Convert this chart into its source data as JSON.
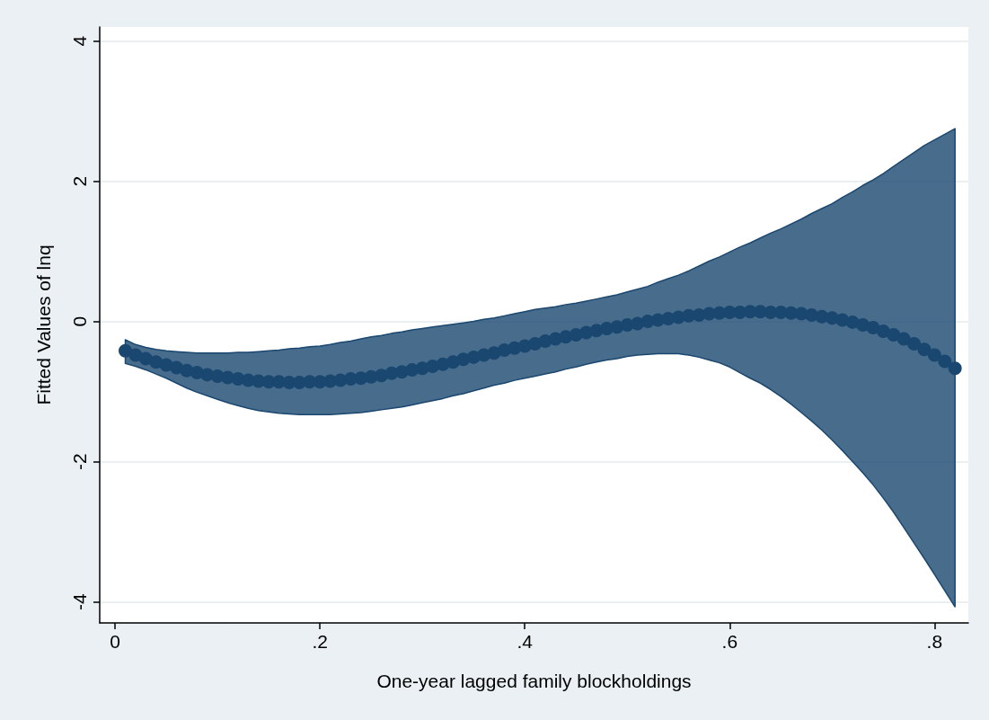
{
  "chart_data": {
    "type": "scatter",
    "xlabel": "One-year lagged family blockholdings",
    "ylabel": "Fitted Values of lnq",
    "x": [
      0.01,
      0.02,
      0.03,
      0.04,
      0.05,
      0.06,
      0.07,
      0.08,
      0.09,
      0.1,
      0.11,
      0.12,
      0.13,
      0.14,
      0.15,
      0.16,
      0.17,
      0.18,
      0.19,
      0.2,
      0.21,
      0.22,
      0.23,
      0.24,
      0.25,
      0.26,
      0.27,
      0.28,
      0.29,
      0.3,
      0.31,
      0.32,
      0.33,
      0.34,
      0.35,
      0.36,
      0.37,
      0.38,
      0.39,
      0.4,
      0.41,
      0.42,
      0.43,
      0.44,
      0.45,
      0.46,
      0.47,
      0.48,
      0.49,
      0.5,
      0.51,
      0.52,
      0.53,
      0.54,
      0.55,
      0.56,
      0.57,
      0.58,
      0.59,
      0.6,
      0.61,
      0.62,
      0.63,
      0.64,
      0.65,
      0.66,
      0.67,
      0.68,
      0.69,
      0.7,
      0.71,
      0.72,
      0.73,
      0.74,
      0.75,
      0.76,
      0.77,
      0.78,
      0.79,
      0.8,
      0.81,
      0.82
    ],
    "series": [
      {
        "color": "#1a476f",
        "values": [
          -0.42,
          -0.48,
          -0.53,
          -0.58,
          -0.62,
          -0.66,
          -0.7,
          -0.73,
          -0.76,
          -0.78,
          -0.8,
          -0.82,
          -0.84,
          -0.85,
          -0.86,
          -0.86,
          -0.87,
          -0.87,
          -0.86,
          -0.86,
          -0.85,
          -0.84,
          -0.82,
          -0.81,
          -0.79,
          -0.77,
          -0.74,
          -0.72,
          -0.69,
          -0.67,
          -0.64,
          -0.61,
          -0.58,
          -0.54,
          -0.51,
          -0.48,
          -0.45,
          -0.41,
          -0.38,
          -0.35,
          -0.32,
          -0.28,
          -0.25,
          -0.22,
          -0.19,
          -0.16,
          -0.13,
          -0.1,
          -0.08,
          -0.05,
          -0.03,
          0.0,
          0.02,
          0.04,
          0.06,
          0.08,
          0.09,
          0.11,
          0.12,
          0.13,
          0.13,
          0.14,
          0.14,
          0.13,
          0.13,
          0.12,
          0.11,
          0.09,
          0.07,
          0.05,
          0.02,
          -0.01,
          -0.05,
          -0.09,
          -0.14,
          -0.19,
          -0.25,
          -0.32,
          -0.4,
          -0.48,
          -0.57,
          -0.67
        ],
        "upper": [
          -0.26,
          -0.33,
          -0.37,
          -0.4,
          -0.42,
          -0.43,
          -0.44,
          -0.45,
          -0.45,
          -0.45,
          -0.45,
          -0.44,
          -0.44,
          -0.43,
          -0.42,
          -0.41,
          -0.39,
          -0.38,
          -0.36,
          -0.35,
          -0.33,
          -0.3,
          -0.28,
          -0.25,
          -0.22,
          -0.2,
          -0.17,
          -0.15,
          -0.12,
          -0.1,
          -0.08,
          -0.06,
          -0.04,
          -0.02,
          0.0,
          0.03,
          0.05,
          0.08,
          0.11,
          0.14,
          0.17,
          0.19,
          0.21,
          0.24,
          0.26,
          0.29,
          0.32,
          0.35,
          0.38,
          0.42,
          0.46,
          0.5,
          0.56,
          0.61,
          0.66,
          0.72,
          0.79,
          0.86,
          0.92,
          0.99,
          1.06,
          1.12,
          1.19,
          1.26,
          1.32,
          1.39,
          1.46,
          1.54,
          1.61,
          1.68,
          1.77,
          1.85,
          1.94,
          2.02,
          2.11,
          2.21,
          2.31,
          2.41,
          2.51,
          2.59,
          2.67,
          2.75
        ],
        "lower": [
          -0.6,
          -0.64,
          -0.69,
          -0.75,
          -0.81,
          -0.88,
          -0.95,
          -1.01,
          -1.06,
          -1.11,
          -1.16,
          -1.2,
          -1.24,
          -1.27,
          -1.29,
          -1.31,
          -1.32,
          -1.33,
          -1.33,
          -1.33,
          -1.33,
          -1.32,
          -1.31,
          -1.3,
          -1.28,
          -1.26,
          -1.24,
          -1.22,
          -1.19,
          -1.16,
          -1.13,
          -1.1,
          -1.06,
          -1.03,
          -0.99,
          -0.95,
          -0.91,
          -0.88,
          -0.84,
          -0.81,
          -0.78,
          -0.75,
          -0.72,
          -0.68,
          -0.65,
          -0.61,
          -0.58,
          -0.55,
          -0.53,
          -0.5,
          -0.48,
          -0.47,
          -0.46,
          -0.46,
          -0.46,
          -0.48,
          -0.51,
          -0.55,
          -0.59,
          -0.65,
          -0.73,
          -0.81,
          -0.88,
          -0.97,
          -1.07,
          -1.18,
          -1.3,
          -1.42,
          -1.55,
          -1.69,
          -1.84,
          -2.0,
          -2.16,
          -2.33,
          -2.52,
          -2.72,
          -2.94,
          -3.16,
          -3.38,
          -3.61,
          -3.84,
          -4.07
        ]
      }
    ],
    "xlim": [
      -0.015,
      0.833
    ],
    "xticks": [
      0,
      {
        "value": 0.2,
        "label": ".2"
      },
      {
        "value": 0.4,
        "label": ".4"
      },
      {
        "value": 0.6,
        "label": ".6"
      },
      {
        "value": 0.8,
        "label": ".8"
      }
    ],
    "ylim": [
      -4.3,
      4.2
    ],
    "yticks": [
      -4,
      -2,
      0,
      2,
      4
    ],
    "grid": "y",
    "marker": "circle"
  }
}
